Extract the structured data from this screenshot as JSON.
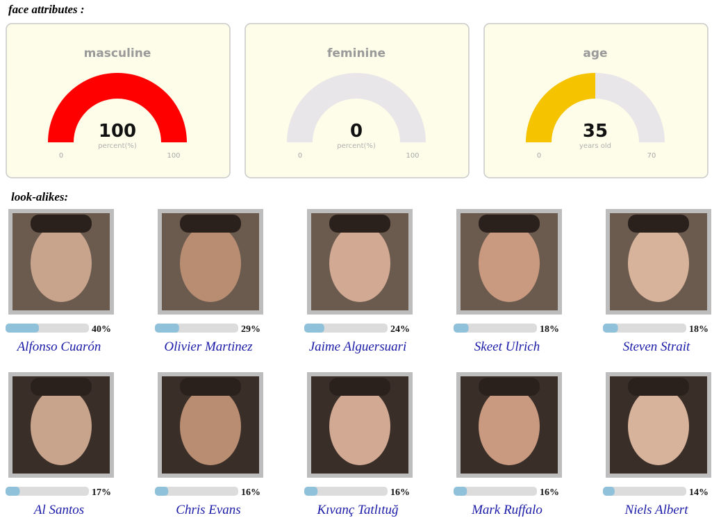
{
  "header": {
    "title": "face attributes :"
  },
  "gauges": [
    {
      "title": "masculine",
      "value": 100,
      "unit": "percent(%)",
      "min": 0,
      "max": 100,
      "color": "#ff0000"
    },
    {
      "title": "feminine",
      "value": 0,
      "unit": "percent(%)",
      "min": 0,
      "max": 100
    },
    {
      "title": "age",
      "value": 35,
      "unit": "years old",
      "min": 0,
      "max": 70,
      "color": "#f5c300"
    }
  ],
  "lookalikes": {
    "title": "look-alikes:",
    "items": [
      {
        "name": "Alfonso Cuarón",
        "percent": 40,
        "percent_label": "40%"
      },
      {
        "name": "Olivier Martinez",
        "percent": 29,
        "percent_label": "29%"
      },
      {
        "name": "Jaime Alguersuari",
        "percent": 24,
        "percent_label": "24%"
      },
      {
        "name": "Skeet Ulrich",
        "percent": 18,
        "percent_label": "18%"
      },
      {
        "name": "Steven Strait",
        "percent": 18,
        "percent_label": "18%"
      },
      {
        "name": "Al Santos",
        "percent": 17,
        "percent_label": "17%"
      },
      {
        "name": "Chris Evans",
        "percent": 16,
        "percent_label": "16%"
      },
      {
        "name": "Kıvanç Tatlıtuğ",
        "percent": 16,
        "percent_label": "16%"
      },
      {
        "name": "Mark Ruffalo",
        "percent": 16,
        "percent_label": "16%"
      },
      {
        "name": "Niels Albert",
        "percent": 14,
        "percent_label": "14%"
      }
    ]
  }
}
